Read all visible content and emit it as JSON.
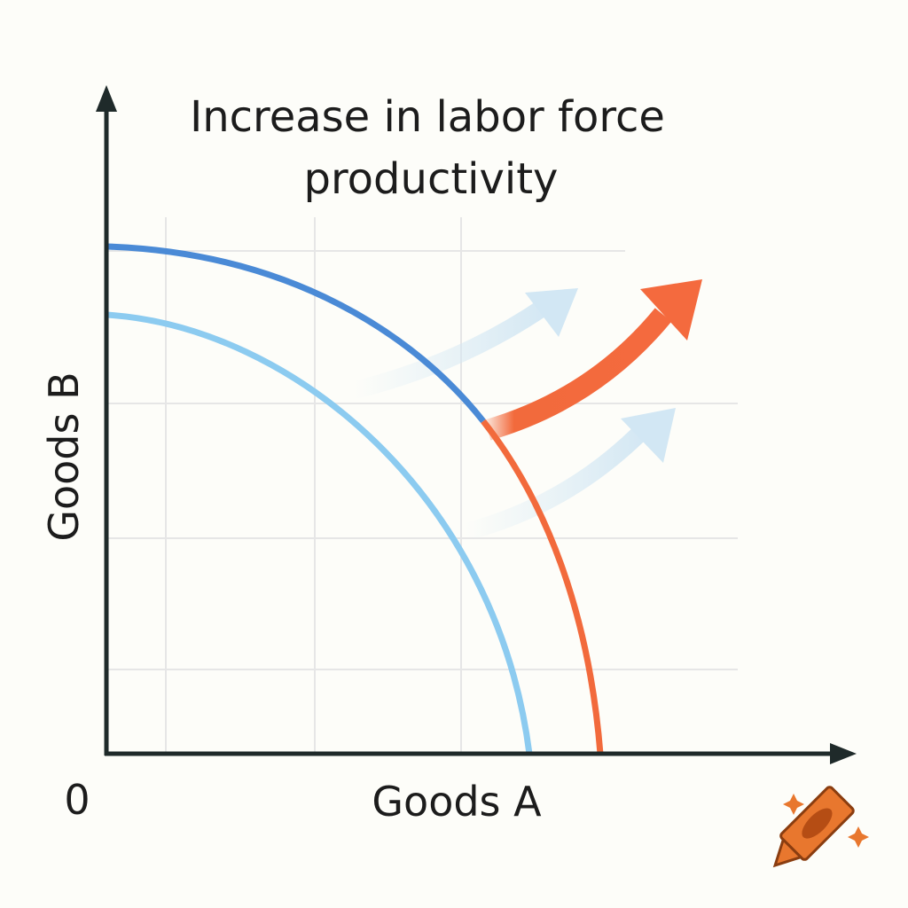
{
  "title_lines": [
    "Increase in labor force",
    "productivity"
  ],
  "y_axis_label": "Goods B",
  "x_axis_label": "Goods A",
  "origin_label": "0"
}
